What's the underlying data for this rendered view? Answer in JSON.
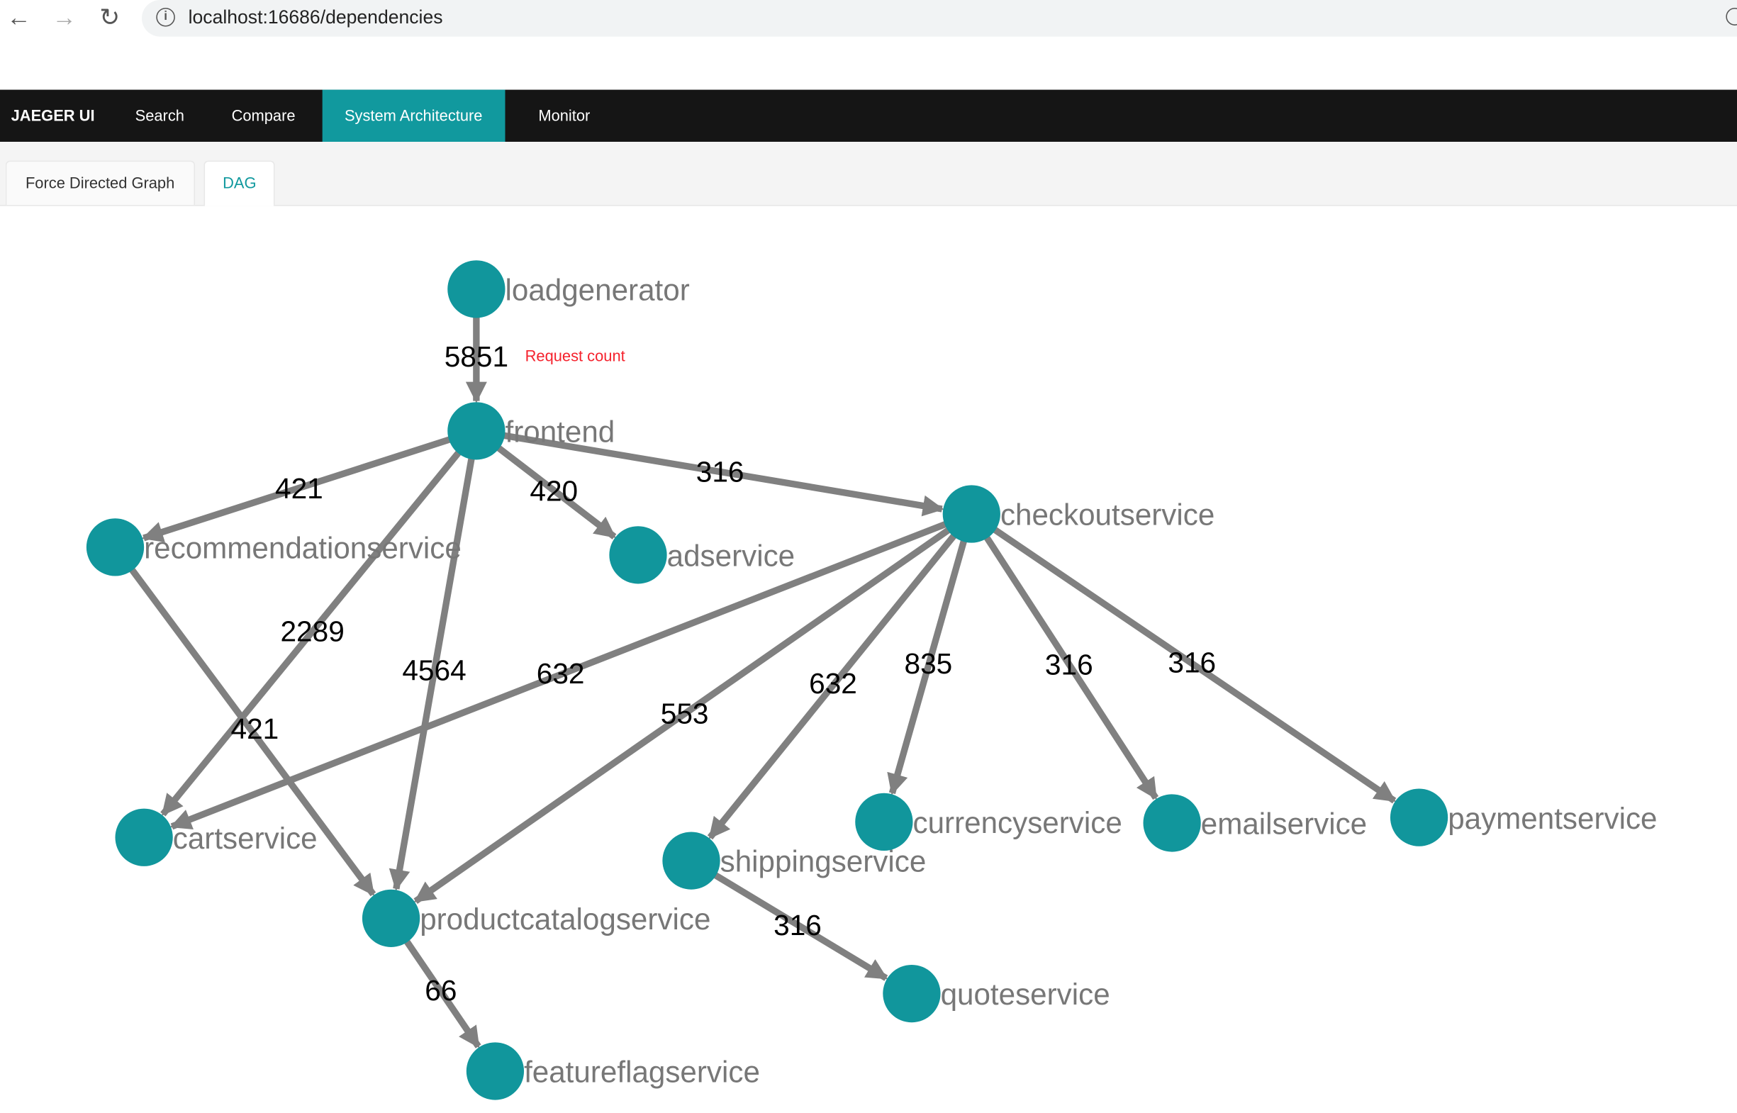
{
  "browser": {
    "url": "localhost:16686/dependencies"
  },
  "nav": {
    "brand": "JAEGER UI",
    "items": [
      "Search",
      "Compare",
      "System Architecture",
      "Monitor"
    ],
    "active": "System Architecture",
    "accent": "#11999e"
  },
  "tabs": {
    "items": [
      "Force Directed Graph",
      "DAG"
    ],
    "active": "DAG"
  },
  "annotation": {
    "text": "Request count",
    "color": "#f5222d"
  },
  "graph": {
    "node_color": "#11969c",
    "edge_color": "#808080",
    "nodes": [
      "loadgenerator",
      "frontend",
      "recommendationservice",
      "adservice",
      "checkoutservice",
      "cartservice",
      "productcatalogservice",
      "shippingservice",
      "currencyservice",
      "emailservice",
      "paymentservice",
      "quoteservice",
      "featureflagservice"
    ],
    "edges": [
      {
        "source": "loadgenerator",
        "target": "frontend",
        "count": "5851"
      },
      {
        "source": "frontend",
        "target": "recommendationservice",
        "count": "421"
      },
      {
        "source": "frontend",
        "target": "adservice",
        "count": "420"
      },
      {
        "source": "frontend",
        "target": "checkoutservice",
        "count": "316"
      },
      {
        "source": "frontend",
        "target": "cartservice",
        "count": "2289"
      },
      {
        "source": "frontend",
        "target": "productcatalogservice",
        "count": "4564"
      },
      {
        "source": "recommendationservice",
        "target": "productcatalogservice",
        "count": "421"
      },
      {
        "source": "checkoutservice",
        "target": "cartservice",
        "count": "632"
      },
      {
        "source": "checkoutservice",
        "target": "productcatalogservice",
        "count": "553"
      },
      {
        "source": "checkoutservice",
        "target": "shippingservice",
        "count": "632"
      },
      {
        "source": "checkoutservice",
        "target": "currencyservice",
        "count": "835"
      },
      {
        "source": "checkoutservice",
        "target": "emailservice",
        "count": "316"
      },
      {
        "source": "checkoutservice",
        "target": "paymentservice",
        "count": "316"
      },
      {
        "source": "shippingservice",
        "target": "quoteservice",
        "count": "316"
      },
      {
        "source": "productcatalogservice",
        "target": "featureflagservice",
        "count": "66"
      }
    ]
  }
}
